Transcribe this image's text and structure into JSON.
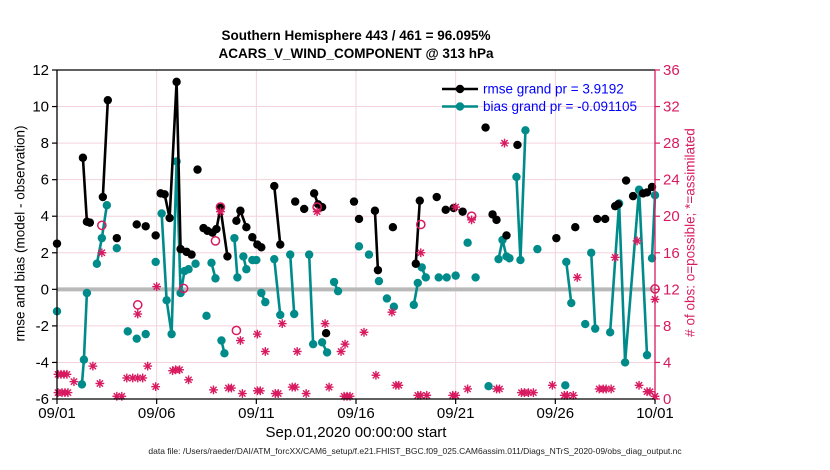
{
  "figure": {
    "title": "Southern Hemisphere 443 / 461 = 96.095%",
    "subtitle": "ACARS_V_WIND_COMPONENT @ 313 hPa",
    "xlabel": "Sep.01,2020 00:00:00 start",
    "ylabel_left": "rmse and bias (model - observation)",
    "ylabel_right": "# of obs: o=possible; *=assimilated",
    "footer": "data file: /Users/raeder/DAI/ATM_forcXX/CAM6_setup/f.e21.FHIST_BGC.f09_025.CAM6assim.011/Diags_NTrS_2020-09/obs_diag_output.nc"
  },
  "chart_data": {
    "type": "line",
    "title": "Southern Hemisphere 443 / 461 = 96.095%",
    "subtitle": "ACARS_V_WIND_COMPONENT @ 313 hPa",
    "xlabel": "Sep.01,2020 00:00:00 start",
    "ylabel_left": "rmse and bias (model - observation)",
    "ylabel_right": "# of obs: o=possible; *=assimilated",
    "x_axis": {
      "range_days": [
        0,
        30
      ],
      "tick_days": [
        0,
        5,
        10,
        15,
        20,
        25,
        30
      ],
      "tick_labels": [
        "09/01",
        "09/06",
        "09/11",
        "09/16",
        "09/21",
        "09/26",
        "10/01"
      ]
    },
    "y_left": {
      "range": [
        -6,
        12
      ],
      "ticks": [
        12,
        10,
        8,
        6,
        4,
        2,
        0,
        -2,
        -4,
        -6
      ]
    },
    "y_right": {
      "range": [
        0,
        36
      ],
      "ticks": [
        36,
        32,
        28,
        24,
        20,
        16,
        12,
        8,
        4,
        0
      ]
    },
    "grid": true,
    "legend_position": "top-right-inside",
    "legend": [
      {
        "name": "rmse",
        "label": "rmse grand pr = 3.9192",
        "color": "#000000"
      },
      {
        "name": "bias",
        "label": "bias grand pr = -0.091105",
        "color": "#008b8b"
      }
    ],
    "colors": {
      "rmse": "#000000",
      "bias": "#008b8b",
      "obs": "#d81b60",
      "legend_text": "#0000ff",
      "grid": "#f3d3dc",
      "zero_line": "#b9b9b9",
      "axis_left": "#000000",
      "axis_right": "#d81b60"
    },
    "series": {
      "rmse_chains": [
        [
          [
            0.0,
            2.5
          ]
        ],
        [
          [
            1.3,
            7.2
          ],
          [
            1.5,
            3.7
          ],
          [
            1.65,
            3.65
          ]
        ],
        [
          [
            2.3,
            5.05
          ],
          [
            2.55,
            10.35
          ]
        ],
        [
          [
            3.0,
            2.8
          ]
        ],
        [
          [
            4.0,
            3.55
          ]
        ],
        [
          [
            4.45,
            3.45
          ]
        ],
        [
          [
            4.95,
            2.95
          ]
        ],
        [
          [
            5.2,
            5.25
          ],
          [
            5.4,
            5.2
          ],
          [
            5.65,
            3.9
          ],
          [
            6.0,
            11.35
          ],
          [
            6.2,
            2.2
          ],
          [
            6.5,
            2.05
          ],
          [
            6.75,
            1.9
          ]
        ],
        [
          [
            7.05,
            6.55
          ]
        ],
        [
          [
            7.35,
            3.35
          ]
        ],
        [
          [
            7.55,
            3.2
          ]
        ],
        [
          [
            7.8,
            3.1
          ],
          [
            8.0,
            3.3
          ],
          [
            8.2,
            4.45
          ],
          [
            8.55,
            1.8
          ]
        ],
        [
          [
            9.0,
            3.75
          ],
          [
            9.2,
            4.3
          ],
          [
            9.5,
            3.4
          ]
        ],
        [
          [
            9.8,
            2.85
          ],
          [
            10.05,
            2.45
          ],
          [
            10.25,
            2.3
          ]
        ],
        [
          [
            10.9,
            5.65
          ],
          [
            11.2,
            2.45
          ]
        ],
        [
          [
            11.95,
            4.8
          ]
        ],
        [
          [
            12.4,
            4.4
          ]
        ],
        [
          [
            12.9,
            5.25
          ],
          [
            13.1,
            4.65
          ],
          [
            13.3,
            4.5
          ]
        ],
        [
          [
            13.5,
            -2.4
          ]
        ],
        [
          [
            14.9,
            4.8
          ]
        ],
        [
          [
            15.15,
            3.85
          ]
        ],
        [
          [
            15.95,
            4.3
          ],
          [
            16.1,
            1.05
          ]
        ],
        [
          [
            16.85,
            3.4
          ]
        ],
        [
          [
            18.0,
            1.4
          ],
          [
            18.2,
            4.85
          ]
        ],
        [
          [
            19.05,
            5.05
          ]
        ],
        [
          [
            19.5,
            4.35
          ]
        ],
        [
          [
            19.9,
            4.45
          ]
        ],
        [
          [
            20.35,
            4.25
          ]
        ],
        [
          [
            21.5,
            8.85
          ]
        ],
        [
          [
            21.85,
            4.1
          ]
        ],
        [
          [
            22.05,
            3.8
          ]
        ],
        [
          [
            22.55,
            2.95
          ]
        ],
        [
          [
            23.1,
            7.9
          ]
        ],
        [
          [
            25.05,
            2.8
          ]
        ],
        [
          [
            26.0,
            3.4
          ]
        ],
        [
          [
            27.1,
            3.85
          ]
        ],
        [
          [
            27.5,
            3.85
          ]
        ],
        [
          [
            28.0,
            4.55
          ]
        ],
        [
          [
            28.15,
            4.65
          ]
        ],
        [
          [
            28.55,
            5.95
          ]
        ],
        [
          [
            28.9,
            5.1
          ]
        ],
        [
          [
            29.4,
            5.25
          ]
        ],
        [
          [
            29.6,
            5.3
          ]
        ],
        [
          [
            29.85,
            5.6
          ]
        ]
      ],
      "bias_chains": [
        [
          [
            0.0,
            -1.2
          ]
        ],
        [
          [
            1.25,
            -5.2
          ],
          [
            1.35,
            -3.85
          ],
          [
            1.5,
            -0.2
          ]
        ],
        [
          [
            2.0,
            1.4
          ],
          [
            2.25,
            2.8
          ],
          [
            2.5,
            4.6
          ]
        ],
        [
          [
            3.0,
            2.25
          ]
        ],
        [
          [
            3.55,
            -2.3
          ]
        ],
        [
          [
            4.0,
            -2.7
          ]
        ],
        [
          [
            4.45,
            -2.45
          ]
        ],
        [
          [
            4.95,
            1.5
          ]
        ],
        [
          [
            5.25,
            4.15
          ],
          [
            5.5,
            -0.6
          ],
          [
            5.75,
            -2.45
          ],
          [
            6.0,
            7.0
          ],
          [
            6.2,
            -0.2
          ],
          [
            6.4,
            1.0
          ],
          [
            6.6,
            1.1
          ]
        ],
        [
          [
            6.95,
            1.4
          ]
        ],
        [
          [
            7.5,
            -1.45
          ]
        ],
        [
          [
            7.75,
            1.45
          ],
          [
            7.95,
            0.6
          ]
        ],
        [
          [
            8.25,
            -2.8
          ],
          [
            8.4,
            -3.5
          ]
        ],
        [
          [
            8.9,
            2.8
          ],
          [
            9.05,
            0.65
          ]
        ],
        [
          [
            9.35,
            1.8
          ],
          [
            9.5,
            1.1
          ]
        ],
        [
          [
            9.8,
            1.6
          ],
          [
            10.0,
            1.6
          ]
        ],
        [
          [
            10.25,
            -0.2
          ],
          [
            10.45,
            -0.7
          ]
        ],
        [
          [
            10.9,
            1.65
          ],
          [
            11.2,
            -1.4
          ]
        ],
        [
          [
            11.7,
            1.9
          ],
          [
            11.9,
            -1.35
          ]
        ],
        [
          [
            12.65,
            1.9
          ],
          [
            12.85,
            -3.0
          ]
        ],
        [
          [
            13.3,
            -2.9
          ],
          [
            13.55,
            -3.45
          ]
        ],
        [
          [
            13.9,
            0.4
          ],
          [
            14.1,
            -0.1
          ]
        ],
        [
          [
            15.15,
            2.35
          ]
        ],
        [
          [
            15.65,
            1.9
          ]
        ],
        [
          [
            16.15,
            0.45
          ]
        ],
        [
          [
            16.55,
            -0.5
          ]
        ],
        [
          [
            16.9,
            -0.95
          ]
        ],
        [
          [
            17.9,
            -0.85
          ],
          [
            18.1,
            0.35
          ]
        ],
        [
          [
            18.3,
            1.2
          ],
          [
            18.5,
            0.65
          ]
        ],
        [
          [
            19.15,
            0.65
          ]
        ],
        [
          [
            19.55,
            0.65
          ]
        ],
        [
          [
            20.0,
            0.75
          ]
        ],
        [
          [
            20.6,
            2.55
          ]
        ],
        [
          [
            21.0,
            0.65
          ]
        ],
        [
          [
            21.65,
            -5.3
          ]
        ],
        [
          [
            22.15,
            1.65
          ],
          [
            22.35,
            2.7
          ],
          [
            22.55,
            1.8
          ]
        ],
        [
          [
            22.7,
            1.7
          ]
        ],
        [
          [
            23.05,
            6.15
          ],
          [
            23.25,
            1.6
          ],
          [
            23.5,
            8.7
          ]
        ],
        [
          [
            24.1,
            2.2
          ]
        ],
        [
          [
            25.5,
            -5.25
          ]
        ],
        [
          [
            25.55,
            1.5
          ],
          [
            25.8,
            -0.75
          ]
        ],
        [
          [
            26.5,
            -1.9
          ]
        ],
        [
          [
            26.8,
            2.0
          ],
          [
            27.0,
            -2.15
          ]
        ],
        [
          [
            27.75,
            -2.35
          ],
          [
            28.2,
            4.7
          ],
          [
            28.5,
            -4.0
          ],
          [
            29.2,
            5.45
          ],
          [
            29.6,
            -3.6
          ]
        ],
        [
          [
            29.85,
            1.7
          ],
          [
            30.0,
            5.15
          ]
        ]
      ],
      "obs_possible": [
        [
          2.25,
          19
        ],
        [
          4.05,
          10.3
        ],
        [
          6.35,
          12.1
        ],
        [
          7.95,
          17.3
        ],
        [
          8.2,
          21
        ],
        [
          9.0,
          7.5
        ],
        [
          13.05,
          21
        ],
        [
          18.25,
          19.1
        ],
        [
          20.8,
          20
        ],
        [
          30.0,
          12.05
        ]
      ],
      "obs_assimilated": [
        [
          2.25,
          16
        ],
        [
          4.05,
          9.3
        ],
        [
          5.0,
          12.3
        ],
        [
          8.2,
          20.5
        ],
        [
          9.2,
          6.4
        ],
        [
          10.05,
          7.1
        ],
        [
          10.45,
          5.2
        ],
        [
          11.3,
          8.25
        ],
        [
          12.05,
          5.2
        ],
        [
          13.05,
          20.5
        ],
        [
          13.45,
          8.25
        ],
        [
          14.25,
          5.2
        ],
        [
          14.45,
          6.0
        ],
        [
          15.4,
          7.3
        ],
        [
          16.8,
          9.5
        ],
        [
          18.25,
          16.0
        ],
        [
          20.0,
          21.0
        ],
        [
          20.8,
          19.6
        ],
        [
          22.45,
          28.0
        ],
        [
          26.1,
          13.3
        ],
        [
          28.0,
          15.5
        ],
        [
          29.1,
          17.3
        ],
        [
          30.0,
          10.9
        ],
        [
          0.05,
          2.7
        ],
        [
          0.2,
          2.7
        ],
        [
          0.35,
          2.7
        ],
        [
          0.5,
          2.7
        ],
        [
          0.05,
          0.7
        ],
        [
          0.25,
          0.7
        ],
        [
          0.4,
          0.7
        ],
        [
          0.55,
          0.7
        ],
        [
          0.85,
          1.9
        ],
        [
          1.8,
          3.6
        ],
        [
          2.15,
          1.7
        ],
        [
          3.0,
          0.3
        ],
        [
          3.25,
          0.3
        ],
        [
          3.5,
          2.3
        ],
        [
          3.8,
          2.3
        ],
        [
          4.05,
          2.3
        ],
        [
          4.3,
          2.3
        ],
        [
          4.55,
          3.6
        ],
        [
          4.95,
          1.35
        ],
        [
          5.8,
          3.1
        ],
        [
          5.95,
          3.2
        ],
        [
          6.15,
          3.2
        ],
        [
          6.6,
          2.1
        ],
        [
          7.85,
          1.0
        ],
        [
          8.6,
          1.2
        ],
        [
          8.75,
          1.2
        ],
        [
          9.3,
          0.6
        ],
        [
          10.05,
          0.9
        ],
        [
          10.2,
          0.9
        ],
        [
          10.95,
          0.6
        ],
        [
          11.1,
          0.6
        ],
        [
          11.8,
          1.3
        ],
        [
          11.95,
          1.3
        ],
        [
          12.5,
          0.6
        ],
        [
          13.65,
          1.3
        ],
        [
          14.4,
          0.3
        ],
        [
          14.55,
          0.3
        ],
        [
          14.7,
          0.3
        ],
        [
          16.0,
          2.6
        ],
        [
          17.0,
          1.5
        ],
        [
          17.15,
          1.5
        ],
        [
          18.1,
          0.4
        ],
        [
          18.25,
          0.4
        ],
        [
          18.55,
          0.4
        ],
        [
          19.85,
          0.4
        ],
        [
          20.0,
          0.4
        ],
        [
          20.6,
          1.1
        ],
        [
          22.05,
          1.1
        ],
        [
          22.2,
          1.1
        ],
        [
          23.3,
          0.7
        ],
        [
          23.45,
          0.7
        ],
        [
          23.65,
          0.7
        ],
        [
          23.9,
          0.7
        ],
        [
          24.85,
          1.5
        ],
        [
          25.45,
          0.4
        ],
        [
          25.6,
          0.4
        ],
        [
          25.9,
          0.4
        ],
        [
          27.2,
          1.1
        ],
        [
          27.4,
          1.1
        ],
        [
          27.55,
          1.1
        ],
        [
          27.8,
          1.1
        ],
        [
          29.2,
          1.5
        ],
        [
          29.6,
          0.8
        ],
        [
          29.75,
          0.8
        ],
        [
          30.0,
          0.3
        ]
      ]
    }
  }
}
